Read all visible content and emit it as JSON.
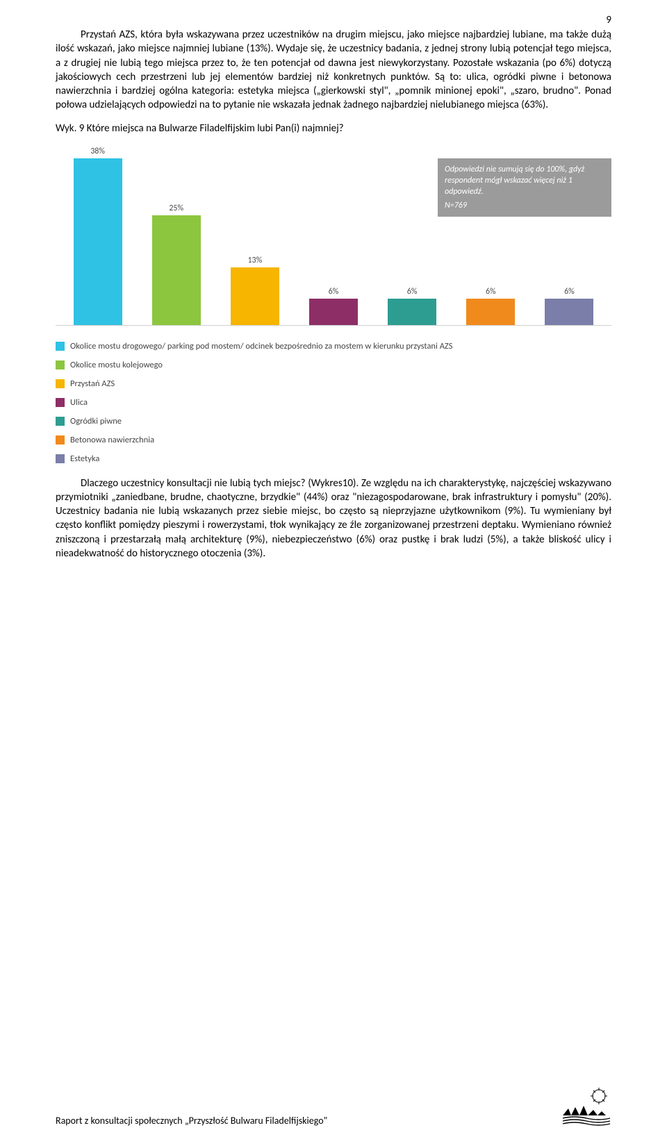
{
  "page_number": "9",
  "paragraph1": "Przystań AZS, która była wskazywana przez uczestników na drugim miejscu, jako miejsce najbardziej lubiane, ma także dużą ilość wskazań, jako miejsce najmniej lubiane (13%). Wydaje się, że uczestnicy badania, z jednej strony lubią potencjał tego miejsca, a z drugiej nie lubią tego miejsca przez to, że ten potencjał od dawna jest niewykorzystany. Pozostałe wskazania (po 6%) dotyczą jakościowych cech przestrzeni lub jej elementów bardziej niż konkretnych punktów. Są to: ulica, ogródki piwne i betonowa nawierzchnia i bardziej ogólna kategoria: estetyka miejsca („gierkowski styl\", „pomnik minionej epoki\", „szaro, brudno\". Ponad połowa udzielających odpowiedzi na to pytanie nie wskazała jednak żadnego najbardziej nielubianego miejsca (63%).",
  "chart_title": "Wyk. 9 Które miejsca na Bulwarze Filadelfijskim lubi Pan(i) najmniej?",
  "chart": {
    "type": "bar",
    "max_value": 38,
    "background_color": "#ffffff",
    "baseline_color": "#cfcfcf",
    "label_color": "#4a4a4a",
    "label_fontsize": 12,
    "bars": [
      {
        "label": "38%",
        "value": 38,
        "color": "#2fc2e4"
      },
      {
        "label": "25%",
        "value": 25,
        "color": "#8cc63f"
      },
      {
        "label": "13%",
        "value": 13,
        "color": "#f7b500"
      },
      {
        "label": "6%",
        "value": 6,
        "color": "#8e2e66"
      },
      {
        "label": "6%",
        "value": 6,
        "color": "#2d9d91"
      },
      {
        "label": "6%",
        "value": 6,
        "color": "#f08a1d"
      },
      {
        "label": "6%",
        "value": 6,
        "color": "#7a7ea8"
      }
    ],
    "note": {
      "background": "#9b9b9b",
      "text_color": "#ffffff",
      "fontsize": 12,
      "line1": "Odpowiedzi nie sumują się do 100%, gdyż respondent mógł wskazać więcej niż 1 odpowiedź.",
      "line2": "N=769"
    },
    "legend": [
      {
        "color": "#2fc2e4",
        "label": "Okolice mostu drogowego/ parking pod mostem/ odcinek bezpośrednio za mostem w kierunku przystani AZS"
      },
      {
        "color": "#8cc63f",
        "label": "Okolice mostu kolejowego"
      },
      {
        "color": "#f7b500",
        "label": "Przystań AZS"
      },
      {
        "color": "#8e2e66",
        "label": "Ulica"
      },
      {
        "color": "#2d9d91",
        "label": "Ogródki piwne"
      },
      {
        "color": "#f08a1d",
        "label": "Betonowa nawierzchnia"
      },
      {
        "color": "#7a7ea8",
        "label": "Estetyka"
      }
    ]
  },
  "paragraph2": "Dlaczego uczestnicy konsultacji nie lubią tych miejsc? (Wykres10). Ze względu na ich charakterystykę, najczęściej wskazywano przymiotniki „zaniedbane, brudne, chaotyczne, brzydkie\" (44%) oraz \"niezagospodarowane, brak infrastruktury i pomysłu\" (20%). Uczestnicy badania nie lubią wskazanych przez siebie miejsc, bo często są nieprzyjazne użytkownikom (9%). Tu wymieniany był często konflikt pomiędzy pieszymi i rowerzystami, tłok wynikający ze źle zorganizowanej przestrzeni deptaku. Wymieniano również zniszczoną i przestarzałą małą architekturę (9%), niebezpieczeństwo (6%) oraz pustkę i brak ludzi (5%), a także bliskość ulicy i nieadekwatność do historycznego otoczenia (3%).",
  "footer_text": "Raport z konsultacji społecznych „Przyszłość Bulwaru Filadelfijskiego\""
}
